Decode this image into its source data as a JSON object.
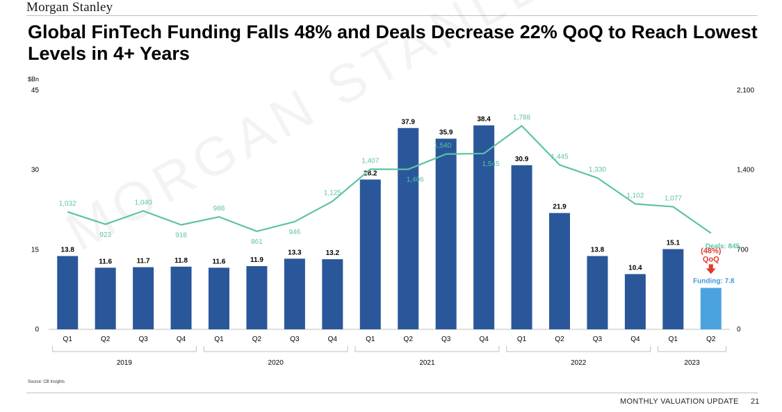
{
  "header": {
    "brand": "Morgan Stanley",
    "title": "Global FinTech Funding Falls 48% and Deals Decrease 22% QoQ to Reach Lowest Levels in 4+ Years"
  },
  "watermark": "MORGAN STANLEY",
  "chart_data": {
    "type": "bar",
    "title": "Global FinTech Funding Falls 48% and Deals Decrease 22% QoQ to Reach Lowest Levels in 4+ Years",
    "ylabel": "$Bn",
    "ylim": [
      0,
      45
    ],
    "y_ticks": [
      "0",
      "15",
      "30",
      "45"
    ],
    "y2lim": [
      0,
      2100
    ],
    "y2_ticks": [
      "0",
      "700",
      "1,400",
      "2,100"
    ],
    "categories": [
      "Q1",
      "Q2",
      "Q3",
      "Q4",
      "Q1",
      "Q2",
      "Q3",
      "Q4",
      "Q1",
      "Q2",
      "Q3",
      "Q4",
      "Q1",
      "Q2",
      "Q3",
      "Q4",
      "Q1",
      "Q2"
    ],
    "years": [
      {
        "label": "2019",
        "start": 0,
        "end": 3
      },
      {
        "label": "2020",
        "start": 4,
        "end": 7
      },
      {
        "label": "2021",
        "start": 8,
        "end": 11
      },
      {
        "label": "2022",
        "start": 12,
        "end": 15
      },
      {
        "label": "2023",
        "start": 16,
        "end": 17
      }
    ],
    "series": [
      {
        "name": "Funding",
        "axis": "left",
        "values": [
          13.8,
          11.6,
          11.7,
          11.8,
          11.6,
          11.9,
          13.3,
          13.2,
          28.2,
          37.9,
          35.9,
          38.4,
          30.9,
          21.9,
          13.8,
          10.4,
          15.1,
          7.8
        ],
        "labels": [
          "13.8",
          "11.6",
          "11.7",
          "11.8",
          "11.6",
          "11.9",
          "13.3",
          "13.2",
          "28.2",
          "37.9",
          "35.9",
          "38.4",
          "30.9",
          "21.9",
          "13.8",
          "10.4",
          "15.1",
          "Funding: 7.8"
        ]
      },
      {
        "name": "Deals",
        "axis": "right",
        "values": [
          1032,
          923,
          1040,
          918,
          988,
          861,
          946,
          1125,
          1407,
          1406,
          1540,
          1545,
          1788,
          1445,
          1330,
          1102,
          1077,
          845
        ],
        "labels": [
          "1,032",
          "923",
          "1,040",
          "918",
          "988",
          "861",
          "946",
          "1,125",
          "1,407",
          "1,406",
          "1,540",
          "1,545",
          "1,788",
          "1,445",
          "1,330",
          "1,102",
          "1,077",
          "Deals: 845"
        ]
      }
    ],
    "annotation": {
      "text_line1": "(48%)",
      "text_line2": "QoQ"
    },
    "colors": {
      "bar": "#2a579a",
      "bar_highlight": "#4aa3e0",
      "line": "#5ec2a4",
      "annotation": "#e03a2f",
      "highlight_label": "#3f9ad6"
    }
  },
  "source": "Source: CB Insights",
  "footer": {
    "label": "MONTHLY VALUATION UPDATE",
    "page": "21"
  }
}
